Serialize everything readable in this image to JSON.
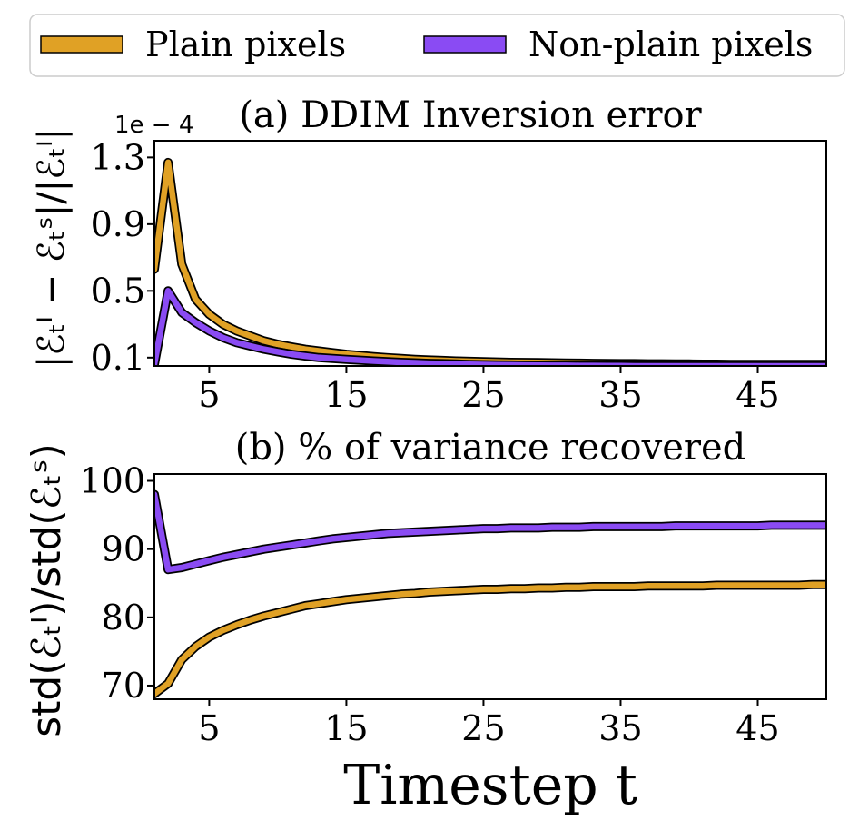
{
  "legend": [
    {
      "label": "Plain pixels",
      "color": "#E0A125"
    },
    {
      "label": "Non-plain pixels",
      "color": "#8A4BF3"
    }
  ],
  "chart_data": [
    {
      "type": "line",
      "title": "(a) DDIM Inversion error",
      "ylabel": "|ℰₜᴵ − ℰₜˢ|/|ℰₜᴵ|",
      "y_multiplier": "1e − 4",
      "xlim": [
        1,
        50
      ],
      "ylim": [
        0.05,
        1.4
      ],
      "xticks": [
        5,
        15,
        25,
        35,
        45
      ],
      "yticks": [
        0.1,
        0.5,
        0.9,
        1.3
      ],
      "ytick_labels": [
        "0.1",
        "0.5",
        "0.9",
        "1.3"
      ],
      "x": [
        1,
        2,
        3,
        4,
        5,
        6,
        7,
        8,
        9,
        10,
        11,
        12,
        13,
        14,
        15,
        16,
        17,
        18,
        19,
        20,
        21,
        22,
        23,
        24,
        25,
        26,
        27,
        28,
        29,
        30,
        31,
        32,
        33,
        34,
        35,
        36,
        37,
        38,
        39,
        40,
        41,
        42,
        43,
        44,
        45,
        46,
        47,
        48,
        49,
        50
      ],
      "series": [
        {
          "name": "Plain pixels",
          "color": "#E0A125",
          "values": [
            0.63,
            1.27,
            0.66,
            0.45,
            0.36,
            0.3,
            0.26,
            0.23,
            0.2,
            0.18,
            0.165,
            0.15,
            0.14,
            0.13,
            0.12,
            0.113,
            0.106,
            0.1,
            0.095,
            0.09,
            0.086,
            0.083,
            0.08,
            0.078,
            0.076,
            0.074,
            0.072,
            0.071,
            0.07,
            0.069,
            0.068,
            0.067,
            0.066,
            0.065,
            0.064,
            0.064,
            0.063,
            0.063,
            0.062,
            0.062,
            0.061,
            0.061,
            0.06,
            0.06,
            0.06,
            0.06,
            0.06,
            0.06,
            0.06,
            0.06
          ]
        },
        {
          "name": "Non-plain pixels",
          "color": "#8A4BF3",
          "values": [
            0.06,
            0.5,
            0.37,
            0.31,
            0.26,
            0.22,
            0.19,
            0.17,
            0.15,
            0.135,
            0.12,
            0.11,
            0.1,
            0.095,
            0.09,
            0.085,
            0.08,
            0.076,
            0.072,
            0.069,
            0.066,
            0.064,
            0.062,
            0.06,
            0.058,
            0.057,
            0.056,
            0.055,
            0.054,
            0.053,
            0.053,
            0.052,
            0.052,
            0.051,
            0.051,
            0.05,
            0.05,
            0.05,
            0.05,
            0.05,
            0.05,
            0.05,
            0.05,
            0.05,
            0.05,
            0.05,
            0.05,
            0.05,
            0.05,
            0.05
          ]
        }
      ]
    },
    {
      "type": "line",
      "title": "(b) % of variance recovered",
      "ylabel": "std(ℰₜᴵ)/std(ℰₜˢ)",
      "xlabel": "Timestep t",
      "xlim": [
        1,
        50
      ],
      "ylim": [
        68,
        101
      ],
      "xticks": [
        5,
        15,
        25,
        35,
        45
      ],
      "yticks": [
        70,
        80,
        90,
        100
      ],
      "ytick_labels": [
        "70",
        "80",
        "90",
        "100"
      ],
      "x": [
        1,
        2,
        3,
        4,
        5,
        6,
        7,
        8,
        9,
        10,
        11,
        12,
        13,
        14,
        15,
        16,
        17,
        18,
        19,
        20,
        21,
        22,
        23,
        24,
        25,
        26,
        27,
        28,
        29,
        30,
        31,
        32,
        33,
        34,
        35,
        36,
        37,
        38,
        39,
        40,
        41,
        42,
        43,
        44,
        45,
        46,
        47,
        48,
        49,
        50
      ],
      "series": [
        {
          "name": "Plain pixels",
          "color": "#E0A125",
          "values": [
            68.8,
            70.3,
            73.8,
            75.7,
            77.1,
            78.1,
            78.9,
            79.6,
            80.2,
            80.7,
            81.2,
            81.7,
            82.0,
            82.3,
            82.6,
            82.8,
            83.0,
            83.2,
            83.4,
            83.5,
            83.7,
            83.8,
            83.9,
            84.0,
            84.1,
            84.1,
            84.2,
            84.2,
            84.3,
            84.3,
            84.4,
            84.4,
            84.5,
            84.5,
            84.5,
            84.5,
            84.6,
            84.6,
            84.6,
            84.6,
            84.6,
            84.7,
            84.7,
            84.7,
            84.7,
            84.7,
            84.7,
            84.7,
            84.8,
            84.8
          ]
        },
        {
          "name": "Non-plain pixels",
          "color": "#8A4BF3",
          "values": [
            98.0,
            87.0,
            87.3,
            87.8,
            88.3,
            88.8,
            89.2,
            89.6,
            90.0,
            90.3,
            90.6,
            90.9,
            91.2,
            91.5,
            91.7,
            91.9,
            92.1,
            92.3,
            92.4,
            92.5,
            92.6,
            92.7,
            92.8,
            92.9,
            93.0,
            93.0,
            93.1,
            93.1,
            93.1,
            93.2,
            93.2,
            93.2,
            93.3,
            93.3,
            93.3,
            93.3,
            93.3,
            93.3,
            93.4,
            93.4,
            93.4,
            93.4,
            93.4,
            93.4,
            93.4,
            93.5,
            93.5,
            93.5,
            93.5,
            93.5
          ]
        }
      ]
    }
  ]
}
